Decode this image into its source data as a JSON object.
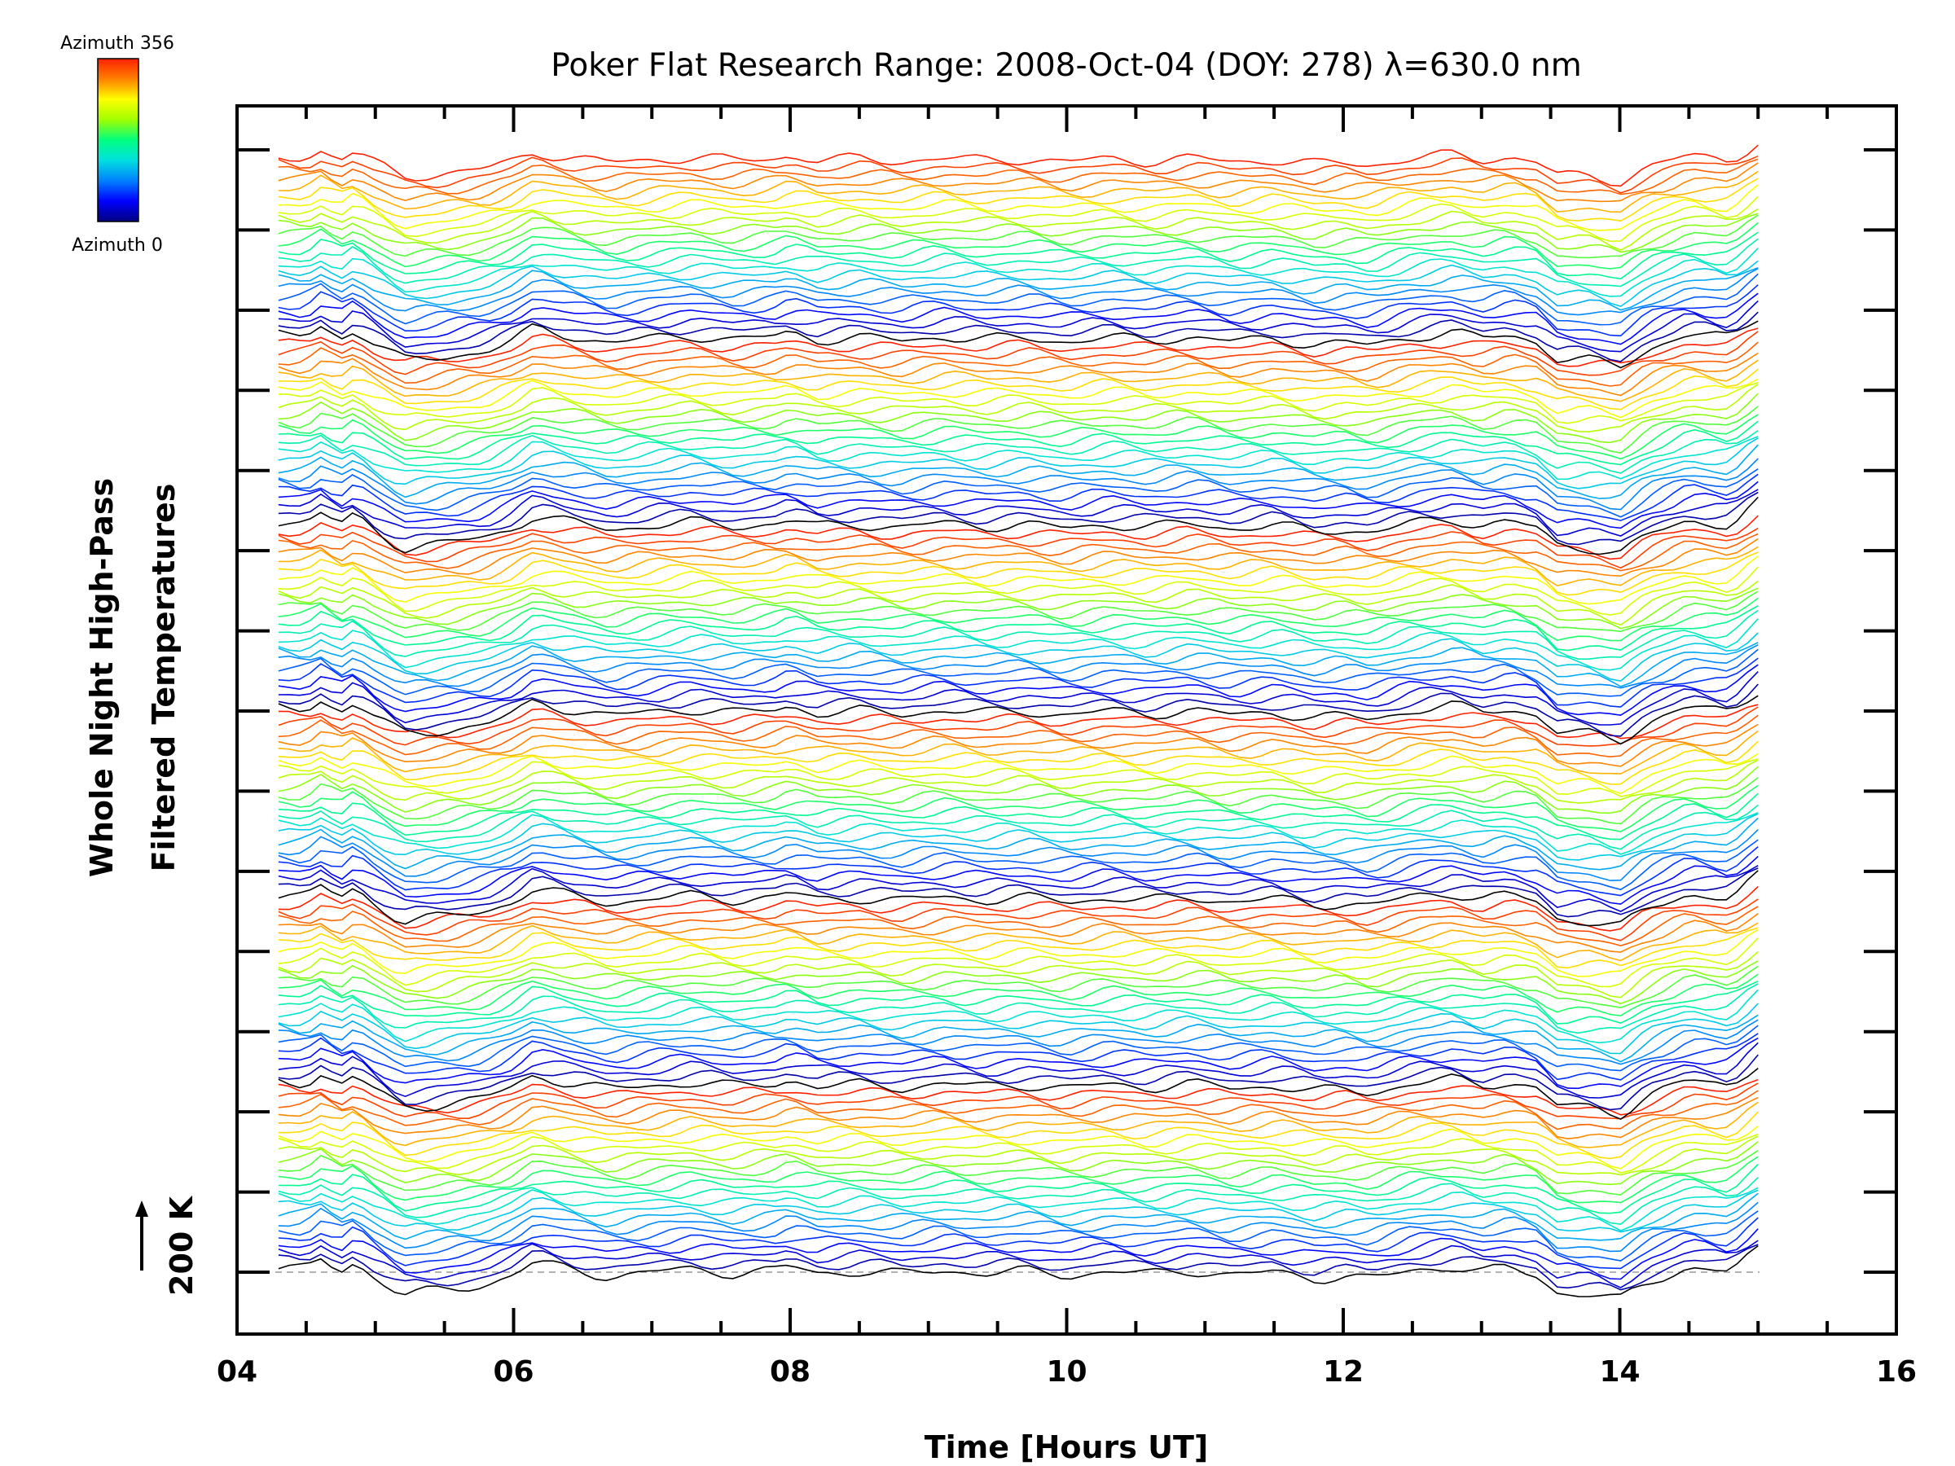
{
  "chart_data": {
    "type": "line",
    "title": "Poker Flat Research Range: 2008-Oct-04 (DOY: 278) λ=630.0 nm",
    "xlabel": "Time [Hours UT]",
    "ylabel_line1": "Whole Night High-Pass",
    "ylabel_line2": "Filtered Temperatures",
    "scale_label": "200 K",
    "scale_kelvin": 200,
    "xlim": [
      4,
      16
    ],
    "x_tick_labels": [
      "04",
      "06",
      "08",
      "10",
      "12",
      "14",
      "16"
    ],
    "x_range_data": [
      4.3,
      15.0
    ],
    "series_count": 144,
    "azimuth_range": [
      0,
      356
    ],
    "colorbar": {
      "top_label": "Azimuth 356",
      "bottom_label": "Azimuth 0",
      "colors": [
        "#000080",
        "#0000ff",
        "#0080ff",
        "#00e0e0",
        "#00ff80",
        "#a0ff00",
        "#ffff00",
        "#ff8000",
        "#ff2000"
      ]
    },
    "baseline_trace": {
      "x": [
        4.3,
        4.5,
        4.6,
        4.75,
        4.85,
        5.0,
        5.2,
        5.5,
        5.8,
        6.0,
        6.15,
        6.4,
        6.7,
        7.0,
        7.3,
        7.6,
        7.9,
        8.0,
        8.2,
        8.5,
        8.8,
        9.1,
        9.4,
        9.7,
        10.0,
        10.3,
        10.6,
        10.9,
        11.2,
        11.5,
        11.8,
        12.0,
        12.2,
        12.5,
        12.8,
        13.0,
        13.2,
        13.4,
        13.55,
        13.8,
        14.0,
        14.2,
        14.5,
        14.8,
        15.0
      ],
      "y": [
        4,
        2,
        12,
        1,
        10,
        -5,
        -22,
        -18,
        -12,
        -2,
        10,
        3,
        -4,
        0,
        3,
        -1,
        2,
        6,
        -1,
        1,
        -2,
        2,
        -1,
        1,
        -3,
        1,
        -2,
        2,
        -3,
        0,
        -6,
        -4,
        -7,
        2,
        6,
        0,
        4,
        -3,
        -20,
        -22,
        -28,
        -10,
        5,
        0,
        22
      ]
    }
  }
}
